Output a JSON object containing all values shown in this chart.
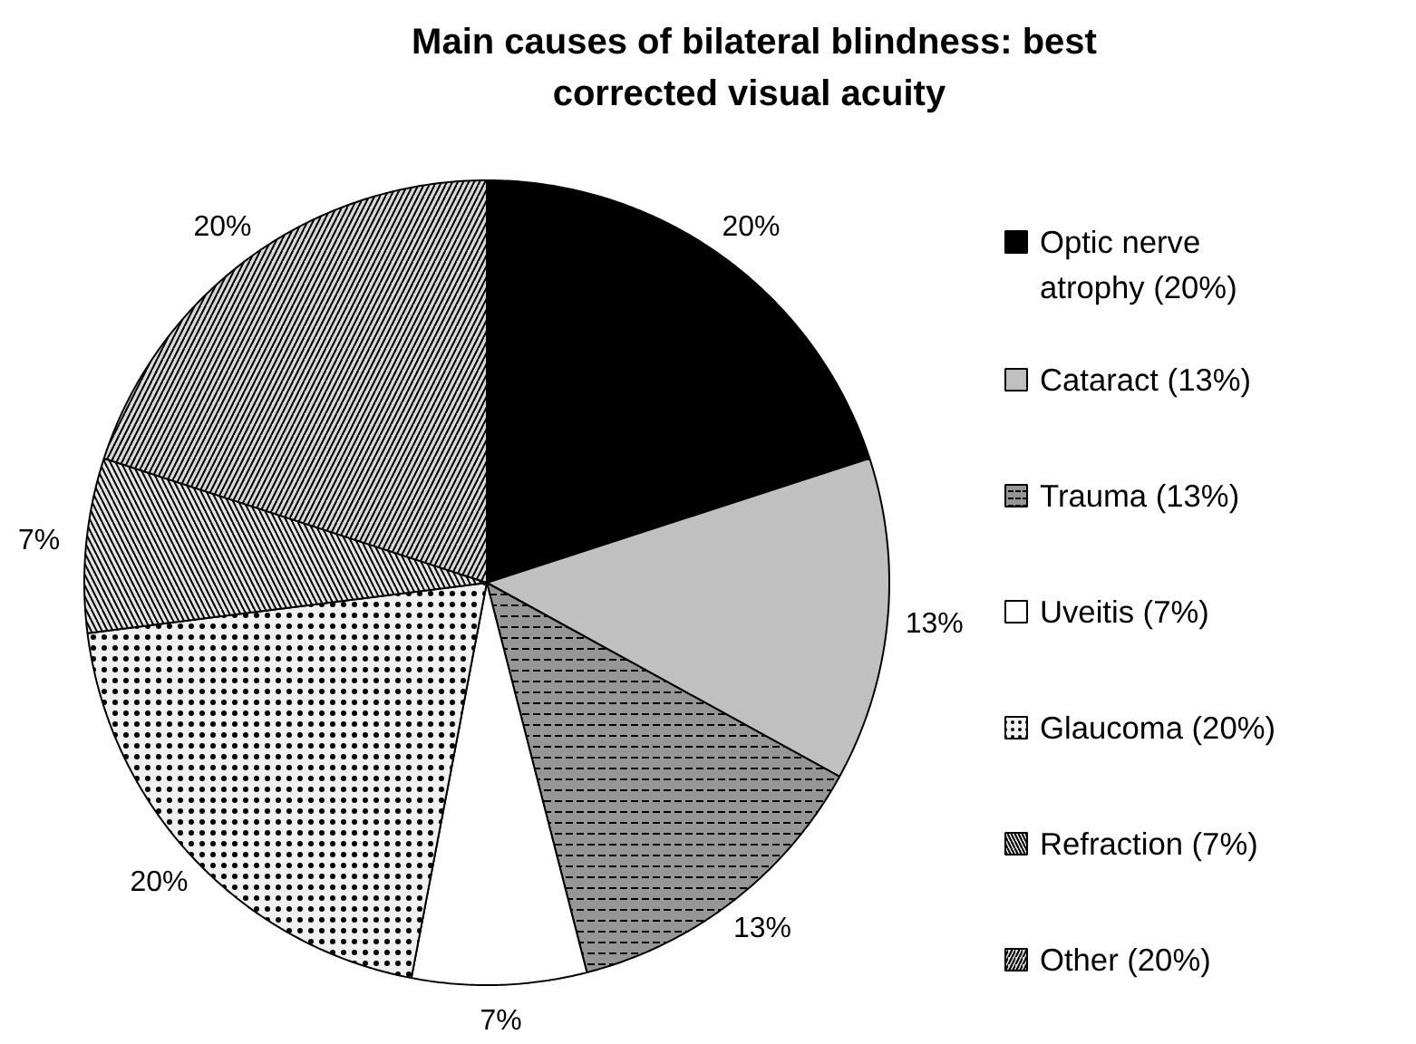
{
  "chart_data": {
    "type": "pie",
    "title": "Main causes of bilateral blindness: best\ncorrected  visual acuity",
    "categories": [
      "Optic nerve atrophy (20%)",
      "Cataract (13%)",
      "Trauma  (13%)",
      "Uveitis (7%)",
      "Glaucoma (20%)",
      "Refraction (7%)",
      "Other (20%)"
    ],
    "values": [
      20,
      13,
      13,
      7,
      20,
      7,
      20
    ],
    "colors": [
      "#000000",
      "#c0c0c0",
      "#969696",
      "#ffffff",
      "#f0f0f0",
      "#e4e4e4",
      "#d8d8d8"
    ],
    "value_labels": [
      "20%",
      "13%",
      "13%",
      "7%",
      "20%",
      "7%",
      "20%"
    ],
    "legend": "right"
  }
}
